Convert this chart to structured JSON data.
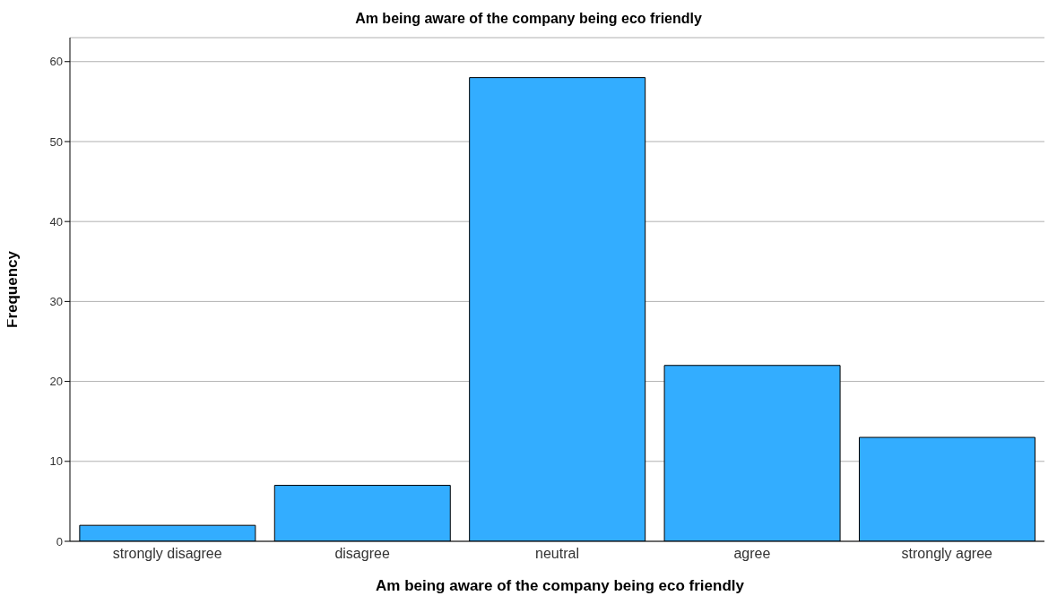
{
  "chart_data": {
    "type": "bar",
    "title": "Am being aware of the company being eco friendly",
    "xlabel": "Am being aware of the company being eco friendly",
    "ylabel": "Frequency",
    "categories": [
      "strongly disagree",
      "disagree",
      "neutral",
      "agree",
      "strongly agree"
    ],
    "values": [
      2,
      7,
      58,
      22,
      13
    ],
    "color": "#33adff",
    "ylim": [
      0,
      63
    ],
    "yticks": [
      0,
      10,
      20,
      30,
      40,
      50,
      60
    ],
    "grid": "y"
  }
}
